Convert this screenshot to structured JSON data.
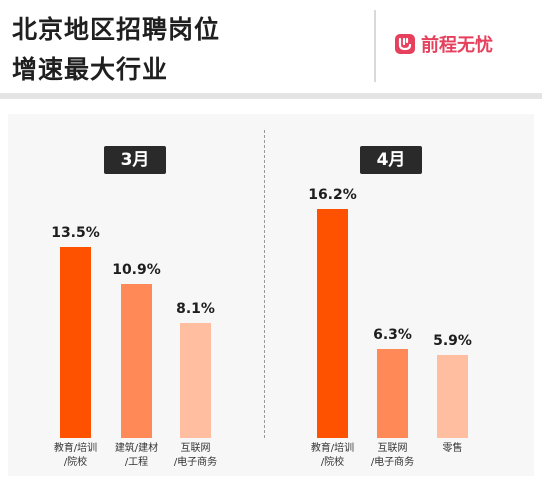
{
  "header": {
    "title_line1": "北京地区招聘岗位",
    "title_line2": "增速最大行业",
    "brand": "前程无忧"
  },
  "colors": {
    "bar_rank1": "#ff5200",
    "bar_rank2": "#ff8a57",
    "bar_rank3": "#ffbea0",
    "brand": "#e6405d"
  },
  "chart_data": [
    {
      "type": "bar",
      "title": "3月",
      "categories": [
        "教育/培训/院校",
        "建筑/建材/工程",
        "互联网/电子商务"
      ],
      "values": [
        13.5,
        10.9,
        8.1
      ],
      "labels": [
        "13.5%",
        "10.9%",
        "8.1%"
      ],
      "unit": "%"
    },
    {
      "type": "bar",
      "title": "4月",
      "categories": [
        "教育/培训/院校",
        "互联网/电子商务",
        "零售"
      ],
      "values": [
        16.2,
        6.3,
        5.9
      ],
      "labels": [
        "16.2%",
        "6.3%",
        "5.9%"
      ],
      "unit": "%"
    }
  ]
}
